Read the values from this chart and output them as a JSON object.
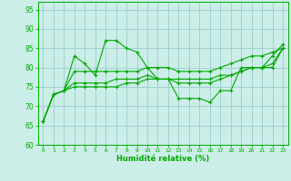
{
  "xlabel": "Humidité relative (%)",
  "xlim": [
    -0.5,
    23.5
  ],
  "ylim": [
    60,
    97
  ],
  "yticks": [
    60,
    65,
    70,
    75,
    80,
    85,
    90,
    95
  ],
  "xticks": [
    0,
    1,
    2,
    3,
    4,
    5,
    6,
    7,
    8,
    9,
    10,
    11,
    12,
    13,
    14,
    15,
    16,
    17,
    18,
    19,
    20,
    21,
    22,
    23
  ],
  "bg_color": "#cceee8",
  "grid_color": "#99cccc",
  "line_color": "#00aa00",
  "lines": [
    {
      "x": [
        0,
        1,
        2,
        3,
        4,
        5,
        6,
        7,
        8,
        9,
        10,
        11,
        12,
        13,
        14,
        15,
        16,
        17,
        18,
        19,
        20,
        21,
        22,
        23
      ],
      "y": [
        66,
        73,
        74,
        83,
        81,
        78,
        87,
        87,
        85,
        84,
        80,
        77,
        77,
        72,
        72,
        72,
        71,
        74,
        74,
        80,
        80,
        80,
        83,
        86
      ]
    },
    {
      "x": [
        0,
        1,
        2,
        3,
        4,
        5,
        6,
        7,
        8,
        9,
        10,
        11,
        12,
        13,
        14,
        15,
        16,
        17,
        18,
        19,
        20,
        21,
        22,
        23
      ],
      "y": [
        66,
        73,
        74,
        79,
        79,
        79,
        79,
        79,
        79,
        79,
        80,
        80,
        80,
        79,
        79,
        79,
        79,
        80,
        81,
        82,
        83,
        83,
        84,
        85
      ]
    },
    {
      "x": [
        0,
        1,
        2,
        3,
        4,
        5,
        6,
        7,
        8,
        9,
        10,
        11,
        12,
        13,
        14,
        15,
        16,
        17,
        18,
        19,
        20,
        21,
        22,
        23
      ],
      "y": [
        66,
        73,
        74,
        76,
        76,
        76,
        76,
        77,
        77,
        77,
        78,
        77,
        77,
        77,
        77,
        77,
        77,
        78,
        78,
        79,
        80,
        80,
        81,
        85
      ]
    },
    {
      "x": [
        0,
        1,
        2,
        3,
        4,
        5,
        6,
        7,
        8,
        9,
        10,
        11,
        12,
        13,
        14,
        15,
        16,
        17,
        18,
        19,
        20,
        21,
        22,
        23
      ],
      "y": [
        66,
        73,
        74,
        75,
        75,
        75,
        75,
        75,
        76,
        76,
        77,
        77,
        77,
        76,
        76,
        76,
        76,
        77,
        78,
        79,
        80,
        80,
        80,
        85
      ]
    }
  ]
}
